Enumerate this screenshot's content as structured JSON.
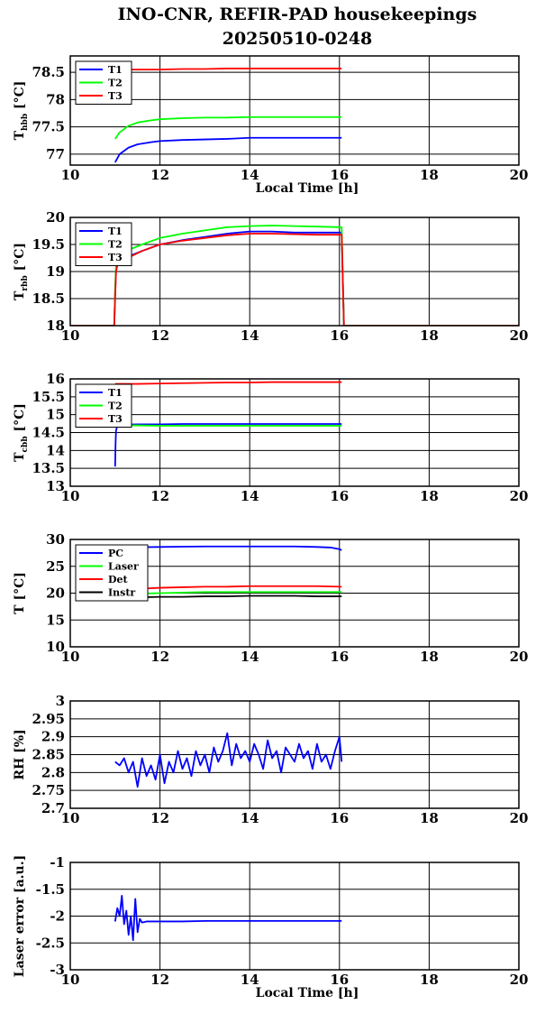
{
  "figure": {
    "title_line1": "INO-CNR, REFIR-PAD housekeepings",
    "title_line2": "20250510-0248"
  },
  "chart_data": [
    {
      "type": "line",
      "ylabel": "T",
      "ylabel_sub": "hbb",
      "ylabel_unit": " [°C]",
      "xlabel": "Local Time [h]",
      "xlim": [
        10,
        20
      ],
      "ylim": [
        76.8,
        78.8
      ],
      "xticks": [
        10,
        12,
        14,
        16,
        18,
        20
      ],
      "xtick_labels": [
        "10",
        "12",
        "14",
        "16",
        "18",
        "20"
      ],
      "yticks": [
        77,
        77.5,
        78,
        78.5
      ],
      "ytick_labels": [
        "77",
        "77.5",
        "78",
        "78.5"
      ],
      "grid": true,
      "legend": "top-left",
      "series": [
        {
          "name": "T1",
          "color": "#0000ff",
          "x": [
            11.0,
            11.1,
            11.3,
            11.5,
            11.8,
            12.0,
            12.5,
            13.0,
            13.5,
            14.0,
            14.5,
            15.0,
            15.5,
            16.0,
            16.05
          ],
          "y": [
            76.85,
            77.0,
            77.12,
            77.18,
            77.22,
            77.24,
            77.26,
            77.27,
            77.28,
            77.3,
            77.3,
            77.3,
            77.3,
            77.3,
            77.3
          ]
        },
        {
          "name": "T2",
          "color": "#00ff00",
          "x": [
            11.0,
            11.1,
            11.3,
            11.5,
            11.8,
            12.0,
            12.5,
            13.0,
            13.5,
            14.0,
            14.5,
            15.0,
            15.5,
            16.0,
            16.05
          ],
          "y": [
            77.28,
            77.4,
            77.52,
            77.58,
            77.62,
            77.64,
            77.66,
            77.67,
            77.67,
            77.68,
            77.68,
            77.68,
            77.68,
            77.68,
            77.68
          ]
        },
        {
          "name": "T3",
          "color": "#ff0000",
          "x": [
            11.0,
            11.5,
            12.0,
            12.5,
            13.0,
            13.5,
            14.0,
            14.5,
            15.0,
            15.5,
            16.0,
            16.05
          ],
          "y": [
            78.55,
            78.55,
            78.55,
            78.56,
            78.56,
            78.57,
            78.57,
            78.57,
            78.57,
            78.57,
            78.57,
            78.57
          ]
        }
      ]
    },
    {
      "type": "line",
      "ylabel": "T",
      "ylabel_sub": "rbb",
      "ylabel_unit": " [°C]",
      "xlabel": "",
      "xlim": [
        10,
        20
      ],
      "ylim": [
        18,
        20
      ],
      "xticks": [
        10,
        12,
        14,
        16,
        18,
        20
      ],
      "xtick_labels": [
        "10",
        "12",
        "14",
        "16",
        "18",
        "20"
      ],
      "yticks": [
        18,
        18.5,
        19,
        19.5,
        20
      ],
      "ytick_labels": [
        "18",
        "18.5",
        "19",
        "19.5",
        "20"
      ],
      "grid": true,
      "legend": "top-left",
      "series": [
        {
          "name": "T1",
          "color": "#0000ff",
          "x": [
            10.0,
            10.98,
            11.0,
            11.02,
            11.05,
            11.1,
            11.3,
            11.6,
            12.0,
            12.5,
            13.0,
            13.5,
            14.0,
            14.5,
            15.0,
            15.5,
            16.0,
            16.05,
            16.1,
            20.0
          ],
          "y": [
            18.0,
            18.0,
            18.6,
            19.0,
            19.15,
            19.2,
            19.28,
            19.38,
            19.5,
            19.58,
            19.64,
            19.7,
            19.74,
            19.74,
            19.72,
            19.72,
            19.72,
            19.72,
            18.0,
            18.0
          ]
        },
        {
          "name": "T2",
          "color": "#00ff00",
          "x": [
            10.0,
            10.98,
            11.0,
            11.02,
            11.05,
            11.1,
            11.3,
            11.6,
            12.0,
            12.5,
            13.0,
            13.5,
            14.0,
            14.5,
            15.0,
            15.5,
            16.0,
            16.05,
            16.1,
            20.0
          ],
          "y": [
            18.0,
            18.0,
            18.7,
            19.1,
            19.25,
            19.3,
            19.4,
            19.5,
            19.62,
            19.7,
            19.76,
            19.82,
            19.84,
            19.85,
            19.84,
            19.83,
            19.82,
            19.82,
            18.0,
            18.0
          ]
        },
        {
          "name": "T3",
          "color": "#ff0000",
          "x": [
            10.0,
            10.98,
            11.0,
            11.02,
            11.05,
            11.1,
            11.3,
            11.6,
            12.0,
            12.5,
            13.0,
            13.5,
            14.0,
            14.5,
            15.0,
            15.5,
            16.0,
            16.05,
            16.1,
            20.0
          ],
          "y": [
            18.0,
            18.0,
            18.5,
            19.0,
            19.12,
            19.18,
            19.26,
            19.38,
            19.5,
            19.57,
            19.62,
            19.67,
            19.7,
            19.7,
            19.69,
            19.68,
            19.68,
            19.68,
            18.0,
            18.0
          ]
        }
      ]
    },
    {
      "type": "line",
      "ylabel": "T",
      "ylabel_sub": "cbb",
      "ylabel_unit": " [°C]",
      "xlabel": "",
      "xlim": [
        10,
        20
      ],
      "ylim": [
        13,
        16
      ],
      "xticks": [
        10,
        12,
        14,
        16,
        18,
        20
      ],
      "xtick_labels": [
        "10",
        "12",
        "14",
        "16",
        "18",
        "20"
      ],
      "yticks": [
        13,
        13.5,
        14,
        14.5,
        15,
        15.5,
        16
      ],
      "ytick_labels": [
        "13",
        "13.5",
        "14",
        "14.5",
        "15",
        "15.5",
        "16"
      ],
      "grid": true,
      "legend": "top-left",
      "series": [
        {
          "name": "T1",
          "color": "#0000ff",
          "x": [
            11.0,
            11.01,
            11.02,
            11.05,
            11.1,
            11.5,
            12.0,
            12.5,
            13.0,
            13.5,
            14.0,
            14.5,
            15.0,
            15.5,
            16.0,
            16.05
          ],
          "y": [
            13.55,
            14.2,
            14.55,
            14.7,
            14.72,
            14.73,
            14.73,
            14.74,
            14.74,
            14.74,
            14.74,
            14.74,
            14.74,
            14.74,
            14.74,
            14.74
          ]
        },
        {
          "name": "T2",
          "color": "#00ff00",
          "x": [
            11.0,
            11.5,
            12.0,
            12.5,
            13.0,
            13.5,
            14.0,
            14.5,
            15.0,
            15.5,
            16.0,
            16.05
          ],
          "y": [
            14.7,
            14.7,
            14.69,
            14.69,
            14.69,
            14.69,
            14.69,
            14.69,
            14.69,
            14.69,
            14.69,
            14.69
          ]
        },
        {
          "name": "T3",
          "color": "#ff0000",
          "x": [
            11.0,
            11.5,
            12.0,
            12.5,
            13.0,
            13.5,
            14.0,
            14.5,
            15.0,
            15.5,
            16.0,
            16.05
          ],
          "y": [
            15.86,
            15.86,
            15.87,
            15.88,
            15.89,
            15.9,
            15.9,
            15.91,
            15.91,
            15.91,
            15.91,
            15.91
          ]
        }
      ]
    },
    {
      "type": "line",
      "ylabel": "T [°C]",
      "xlabel": "",
      "xlim": [
        10,
        20
      ],
      "ylim": [
        10,
        30
      ],
      "xticks": [
        10,
        12,
        14,
        16,
        18,
        20
      ],
      "xtick_labels": [
        "10",
        "12",
        "14",
        "16",
        "18",
        "20"
      ],
      "yticks": [
        10,
        15,
        20,
        25,
        30
      ],
      "ytick_labels": [
        "10",
        "15",
        "20",
        "25",
        "30"
      ],
      "grid": true,
      "legend": "top-left",
      "series": [
        {
          "name": "PC",
          "color": "#0000ff",
          "x": [
            11.0,
            11.2,
            11.5,
            12.0,
            12.5,
            13.0,
            13.5,
            14.0,
            14.5,
            15.0,
            15.5,
            15.8,
            16.0,
            16.05
          ],
          "y": [
            28.4,
            28.5,
            28.55,
            28.6,
            28.65,
            28.7,
            28.7,
            28.7,
            28.7,
            28.7,
            28.6,
            28.5,
            28.2,
            28.0
          ]
        },
        {
          "name": "Laser",
          "color": "#00ff00",
          "x": [
            11.0,
            11.5,
            12.0,
            12.5,
            13.0,
            13.5,
            14.0,
            14.5,
            15.0,
            15.5,
            16.0,
            16.05
          ],
          "y": [
            19.8,
            19.9,
            20.0,
            20.1,
            20.2,
            20.2,
            20.2,
            20.2,
            20.2,
            20.2,
            20.2,
            20.2
          ]
        },
        {
          "name": "Det",
          "color": "#ff0000",
          "x": [
            11.0,
            11.5,
            12.0,
            12.5,
            13.0,
            13.5,
            14.0,
            14.5,
            15.0,
            15.5,
            16.0,
            16.05
          ],
          "y": [
            20.6,
            20.8,
            21.0,
            21.1,
            21.2,
            21.2,
            21.3,
            21.3,
            21.3,
            21.3,
            21.2,
            21.2
          ]
        },
        {
          "name": "Instr",
          "color": "#000000",
          "x": [
            11.0,
            11.5,
            12.0,
            12.5,
            13.0,
            13.5,
            14.0,
            14.5,
            15.0,
            15.5,
            16.0,
            16.05
          ],
          "y": [
            19.2,
            19.2,
            19.3,
            19.3,
            19.4,
            19.4,
            19.5,
            19.5,
            19.5,
            19.4,
            19.4,
            19.4
          ]
        }
      ]
    },
    {
      "type": "line",
      "ylabel": "RH [%]",
      "xlabel": "",
      "xlim": [
        10,
        20
      ],
      "ylim": [
        2.7,
        3.0
      ],
      "xticks": [
        10,
        12,
        14,
        16,
        18,
        20
      ],
      "xtick_labels": [
        "10",
        "12",
        "14",
        "16",
        "18",
        "20"
      ],
      "yticks": [
        2.7,
        2.75,
        2.8,
        2.85,
        2.9,
        2.95,
        3.0
      ],
      "ytick_labels": [
        "2.7",
        "2.75",
        "2.8",
        "2.85",
        "2.9",
        "2.95",
        "3"
      ],
      "grid": true,
      "legend": "none",
      "series": [
        {
          "color": "#0000ff",
          "x": [
            11.0,
            11.1,
            11.2,
            11.3,
            11.4,
            11.5,
            11.6,
            11.7,
            11.8,
            11.9,
            12.0,
            12.1,
            12.2,
            12.3,
            12.4,
            12.5,
            12.6,
            12.7,
            12.8,
            12.9,
            13.0,
            13.1,
            13.2,
            13.3,
            13.4,
            13.5,
            13.6,
            13.7,
            13.8,
            13.9,
            14.0,
            14.1,
            14.2,
            14.3,
            14.4,
            14.5,
            14.6,
            14.7,
            14.8,
            14.9,
            15.0,
            15.1,
            15.2,
            15.3,
            15.4,
            15.5,
            15.6,
            15.7,
            15.8,
            15.9,
            16.0,
            16.05
          ],
          "y": [
            2.83,
            2.82,
            2.84,
            2.8,
            2.83,
            2.76,
            2.84,
            2.79,
            2.82,
            2.78,
            2.85,
            2.77,
            2.83,
            2.8,
            2.86,
            2.81,
            2.84,
            2.79,
            2.86,
            2.82,
            2.85,
            2.8,
            2.87,
            2.83,
            2.86,
            2.91,
            2.82,
            2.88,
            2.84,
            2.86,
            2.83,
            2.88,
            2.85,
            2.81,
            2.89,
            2.84,
            2.86,
            2.8,
            2.87,
            2.85,
            2.83,
            2.88,
            2.84,
            2.86,
            2.81,
            2.88,
            2.83,
            2.85,
            2.81,
            2.86,
            2.9,
            2.83
          ]
        }
      ]
    },
    {
      "type": "line",
      "ylabel": "Laser error [a.u.]",
      "xlabel": "Local Time [h]",
      "xlim": [
        10,
        20
      ],
      "ylim": [
        -3,
        -1
      ],
      "xticks": [
        10,
        12,
        14,
        16,
        18,
        20
      ],
      "xtick_labels": [
        "10",
        "12",
        "14",
        "16",
        "18",
        "20"
      ],
      "yticks": [
        -3,
        -2.5,
        -2,
        -1.5,
        -1
      ],
      "ytick_labels": [
        "-3",
        "-2.5",
        "-2",
        "-1.5",
        "-1"
      ],
      "grid": true,
      "legend": "none",
      "series": [
        {
          "color": "#0000ff",
          "x": [
            11.0,
            11.05,
            11.1,
            11.15,
            11.2,
            11.25,
            11.3,
            11.35,
            11.4,
            11.45,
            11.5,
            11.55,
            11.6,
            11.7,
            12.0,
            12.5,
            13.0,
            13.5,
            14.0,
            14.5,
            15.0,
            15.5,
            16.0,
            16.05
          ],
          "y": [
            -2.1,
            -1.85,
            -2.0,
            -1.62,
            -2.15,
            -1.9,
            -2.35,
            -2.0,
            -2.45,
            -1.68,
            -2.3,
            -2.05,
            -2.12,
            -2.1,
            -2.1,
            -2.1,
            -2.09,
            -2.09,
            -2.09,
            -2.09,
            -2.09,
            -2.09,
            -2.09,
            -2.09
          ]
        }
      ]
    }
  ]
}
